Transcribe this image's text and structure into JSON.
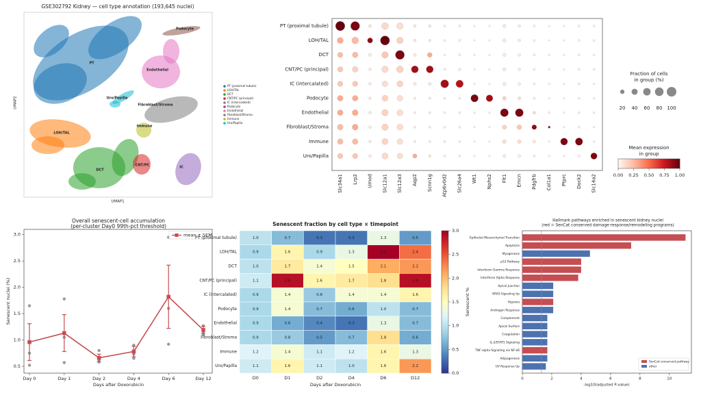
{
  "chart_data": [
    {
      "type": "umap",
      "title": "GSE302792 Kidney — cell type annotation (193,645 nuclei)",
      "xlabel": "UMAP1",
      "ylabel": "UMAP2",
      "clusters": [
        {
          "name": "PT (proximal tubule)",
          "label": "PT",
          "color": "#1f77b4"
        },
        {
          "name": "LOH/TAL",
          "label": "LOH/TAL",
          "color": "#ff7f0e"
        },
        {
          "name": "DCT",
          "label": "DCT",
          "color": "#2ca02c"
        },
        {
          "name": "CNT/PC (principal)",
          "label": "CNT/PC",
          "color": "#d62728"
        },
        {
          "name": "IC (intercalated)",
          "label": "IC",
          "color": "#9467bd"
        },
        {
          "name": "Podocyte",
          "label": "Podocyte",
          "color": "#8c564b"
        },
        {
          "name": "Endothelial",
          "label": "Endothelial",
          "color": "#e377c2"
        },
        {
          "name": "Fibroblast/Stroma",
          "label": "Fibroblast/Stroma",
          "color": "#7f7f7f"
        },
        {
          "name": "Immune",
          "label": "Immune",
          "color": "#bcbd22"
        },
        {
          "name": "Uro/Papilla",
          "label": "Uro/Papilla",
          "color": "#17becf"
        }
      ]
    },
    {
      "type": "dotplot",
      "colormap": "Reds",
      "rows": [
        "PT (proximal tubule)",
        "LOH/TAL",
        "DCT",
        "CNT/PC (principal)",
        "IC (intercalated)",
        "Podocyte",
        "Endothelial",
        "Fibroblast/Stroma",
        "Immune",
        "Uro/Papilla"
      ],
      "columns": [
        "Slc34a1",
        "Lrp2",
        "Umod",
        "Slc12a1",
        "Slc12a3",
        "Aqp2",
        "Scnn1g",
        "Atp6v0d2",
        "Slc26a4",
        "Wt1",
        "Nphs2",
        "Flt1",
        "Emcn",
        "Pdgfrb",
        "Col1a1",
        "Ptprc",
        "Dock2",
        "Slc14a2"
      ],
      "fraction": [
        [
          95,
          88,
          10,
          50,
          45,
          8,
          8,
          5,
          6,
          3,
          3,
          12,
          8,
          5,
          3,
          3,
          5,
          4
        ],
        [
          40,
          50,
          30,
          92,
          45,
          8,
          6,
          4,
          6,
          3,
          3,
          12,
          8,
          5,
          3,
          3,
          5,
          4
        ],
        [
          30,
          35,
          10,
          45,
          88,
          10,
          25,
          4,
          6,
          3,
          3,
          12,
          8,
          5,
          3,
          3,
          5,
          4
        ],
        [
          30,
          35,
          8,
          45,
          50,
          55,
          55,
          6,
          8,
          3,
          3,
          12,
          8,
          5,
          3,
          3,
          5,
          4
        ],
        [
          30,
          30,
          8,
          35,
          40,
          10,
          10,
          70,
          60,
          3,
          3,
          12,
          8,
          5,
          3,
          3,
          5,
          4
        ],
        [
          35,
          35,
          8,
          40,
          35,
          5,
          5,
          5,
          5,
          60,
          50,
          15,
          10,
          5,
          3,
          3,
          5,
          4
        ],
        [
          35,
          38,
          8,
          45,
          40,
          5,
          5,
          5,
          5,
          3,
          3,
          70,
          70,
          10,
          5,
          3,
          5,
          4
        ],
        [
          35,
          38,
          8,
          45,
          40,
          5,
          5,
          5,
          5,
          3,
          3,
          20,
          25,
          25,
          5,
          3,
          5,
          4
        ],
        [
          35,
          35,
          8,
          40,
          35,
          5,
          5,
          5,
          5,
          3,
          3,
          15,
          15,
          10,
          3,
          55,
          60,
          4
        ],
        [
          30,
          30,
          8,
          40,
          35,
          20,
          8,
          5,
          5,
          3,
          3,
          10,
          10,
          5,
          3,
          3,
          5,
          45
        ]
      ],
      "expression": [
        [
          1.0,
          0.95,
          0.05,
          0.12,
          0.1,
          0.05,
          0.05,
          0.03,
          0.03,
          0.02,
          0.02,
          0.05,
          0.03,
          0.02,
          0.01,
          0.01,
          0.02,
          0.02
        ],
        [
          0.3,
          0.25,
          0.9,
          1.0,
          0.15,
          0.05,
          0.05,
          0.03,
          0.03,
          0.02,
          0.02,
          0.05,
          0.03,
          0.02,
          0.01,
          0.01,
          0.02,
          0.02
        ],
        [
          0.25,
          0.25,
          0.05,
          0.2,
          0.95,
          0.05,
          0.3,
          0.03,
          0.03,
          0.02,
          0.02,
          0.05,
          0.03,
          0.02,
          0.01,
          0.01,
          0.02,
          0.02
        ],
        [
          0.2,
          0.15,
          0.05,
          0.12,
          0.15,
          0.85,
          0.85,
          0.03,
          0.03,
          0.02,
          0.02,
          0.05,
          0.03,
          0.02,
          0.01,
          0.01,
          0.02,
          0.02
        ],
        [
          0.2,
          0.2,
          0.05,
          0.1,
          0.15,
          0.05,
          0.05,
          0.85,
          0.8,
          0.02,
          0.02,
          0.05,
          0.03,
          0.02,
          0.01,
          0.01,
          0.02,
          0.02
        ],
        [
          0.3,
          0.3,
          0.05,
          0.15,
          0.1,
          0.05,
          0.05,
          0.03,
          0.03,
          0.95,
          0.85,
          0.15,
          0.1,
          0.02,
          0.01,
          0.01,
          0.02,
          0.02
        ],
        [
          0.3,
          0.3,
          0.05,
          0.15,
          0.1,
          0.05,
          0.05,
          0.03,
          0.03,
          0.02,
          0.02,
          0.95,
          0.95,
          0.1,
          0.03,
          0.01,
          0.02,
          0.02
        ],
        [
          0.25,
          0.3,
          0.05,
          0.15,
          0.1,
          0.05,
          0.05,
          0.03,
          0.03,
          0.02,
          0.02,
          0.15,
          0.2,
          0.9,
          0.9,
          0.01,
          0.02,
          0.02
        ],
        [
          0.25,
          0.25,
          0.05,
          0.15,
          0.1,
          0.05,
          0.05,
          0.03,
          0.03,
          0.02,
          0.02,
          0.1,
          0.1,
          0.05,
          0.01,
          0.95,
          0.95,
          0.03
        ],
        [
          0.2,
          0.2,
          0.05,
          0.12,
          0.1,
          0.3,
          0.05,
          0.03,
          0.03,
          0.02,
          0.02,
          0.05,
          0.03,
          0.02,
          0.01,
          0.01,
          0.02,
          0.95
        ]
      ],
      "size_legend": {
        "title": [
          "Fraction of cells",
          "in group (%)"
        ],
        "values": [
          20,
          40,
          60,
          80,
          100
        ]
      },
      "color_legend": {
        "title": [
          "Mean expression",
          "in group"
        ],
        "lim": [
          0,
          1
        ],
        "ticks": [
          {
            "value": 0,
            "label": "0.00"
          },
          {
            "value": 0.25,
            "label": "0.25"
          },
          {
            "value": 0.5,
            "label": "0.50"
          },
          {
            "value": 0.75,
            "label": "0.75"
          },
          {
            "value": 1,
            "label": "1.00"
          }
        ]
      }
    },
    {
      "type": "line",
      "title": [
        "Overall senescent-cell accumulation",
        "(per-cluster Day0 99th-pct threshold)"
      ],
      "categories": [
        "Day 0",
        "Day 1",
        "Day 2",
        "Day 4",
        "Day 6",
        "Day 12"
      ],
      "series": [
        {
          "name": "mean ± SEM",
          "color": "#c44e52",
          "values": [
            0.96,
            1.13,
            0.66,
            0.78,
            1.82,
            1.19
          ],
          "errors": [
            0.35,
            0.35,
            0.07,
            0.1,
            0.6,
            0.07
          ]
        }
      ],
      "replicates": [
        [
          1.65,
          0.75,
          0.52
        ],
        [
          1.78,
          1.05,
          0.57
        ],
        [
          0.8,
          0.62,
          0.58
        ],
        [
          0.9,
          0.73,
          0.65
        ],
        [
          2.95,
          1.6,
          0.92
        ],
        [
          1.27,
          1.15,
          1.1
        ]
      ],
      "replicate_color": "#999999",
      "ylim": [
        0.37,
        3.1
      ],
      "yticks": [
        0.5,
        {
          "value": 1,
          "label": "1.0"
        },
        1.5,
        {
          "value": 2,
          "label": "2.0"
        },
        2.5,
        {
          "value": 3,
          "label": "3.0"
        }
      ],
      "xlabel": "Days after Doxorubicin",
      "ylabel": "Senescent nuclei (%)",
      "legend": "upper right",
      "grid": false
    },
    {
      "type": "heatmap",
      "title": "Senescent fraction by cell type × timepoint",
      "colormap": "RdYlBu_r",
      "rows": [
        "PT (proximal tubule)",
        "LOH/TAL",
        "DCT",
        "CNT/PC (principal)",
        "IC (intercalated)",
        "Podocyte",
        "Endothelial",
        "Fibroblast/Stroma",
        "Immune",
        "Uro/Papilla"
      ],
      "columns": [
        "D0",
        "D1",
        "D2",
        "D4",
        "D6",
        "D12"
      ],
      "values": [
        [
          1.0,
          0.7,
          0.3,
          0.3,
          1.3,
          0.5
        ],
        [
          0.9,
          1.6,
          0.9,
          1.3,
          3.1,
          2.4
        ],
        [
          1.0,
          1.7,
          1.4,
          1.5,
          2.1,
          2.2
        ],
        [
          1.1,
          2.9,
          1.6,
          1.7,
          1.8,
          2.9
        ],
        [
          0.9,
          1.4,
          0.8,
          1.4,
          1.4,
          1.6
        ],
        [
          0.9,
          1.4,
          0.7,
          0.6,
          1.0,
          0.7
        ],
        [
          0.9,
          0.6,
          0.4,
          0.3,
          1.3,
          0.7
        ],
        [
          0.9,
          0.8,
          0.5,
          0.7,
          1.8,
          0.6
        ],
        [
          1.2,
          1.4,
          1.1,
          1.2,
          1.6,
          1.3
        ],
        [
          1.1,
          1.6,
          1.1,
          1.0,
          1.6,
          2.2
        ]
      ],
      "value_labels": [
        [
          "1.0",
          "0.7",
          "0.3",
          "0.3",
          "1.3",
          "0.5"
        ],
        [
          "0.9",
          "1.6",
          "0.9",
          "1.3",
          "3.1",
          "2.4"
        ],
        [
          "1.0",
          "1.7",
          "1.4",
          "1.5",
          "2.1",
          "2.2"
        ],
        [
          "1.1",
          "2.9",
          "1.6",
          "1.7",
          "1.8",
          "2.9"
        ],
        [
          "0.9",
          "1.4",
          "0.8",
          "1.4",
          "1.4",
          "1.6"
        ],
        [
          "0.9",
          "1.4",
          "0.7",
          "0.6",
          "1.0",
          "0.7"
        ],
        [
          "0.9",
          "0.6",
          "0.4",
          "0.3",
          "1.3",
          "0.7"
        ],
        [
          "0.9",
          "0.8",
          "0.5",
          "0.7",
          "1.8",
          "0.6"
        ],
        [
          "1.2",
          "1.4",
          "1.1",
          "1.2",
          "1.6",
          "1.3"
        ],
        [
          "1.1",
          "1.6",
          "1.1",
          "1.0",
          "1.6",
          "2.2"
        ]
      ],
      "colorbar_lim": [
        0,
        3
      ],
      "colorbar_ticks": [
        {
          "value": 0,
          "label": "0.0"
        },
        0.5,
        {
          "value": 1,
          "label": "1.0"
        },
        1.5,
        {
          "value": 2,
          "label": "2.0"
        },
        2.5,
        {
          "value": 3,
          "label": "3.0"
        }
      ],
      "colorbar_label": "Senescent %",
      "xlabel": "Days after Doxorubicin"
    },
    {
      "type": "barh",
      "title": [
        "Hallmark pathways enriched in senescent kidney nuclei",
        "(red = SenCat conserved damage-response/remodeling programs)"
      ],
      "categories": [
        "Epithelial Mesenchymal Transition",
        "Apoptosis",
        "Myogenesis",
        "p53 Pathway",
        "Interferon Gamma Response",
        "Interferon Alpha Response",
        "Apical Junction",
        "KRAS Signaling Up",
        "Hypoxia",
        "Androgen Response",
        "Complement",
        "Apical Surface",
        "Coagulation",
        "IL-2/STAT5 Signaling",
        "TNF-alpha Signaling via NF-kB",
        "Adipogenesis",
        "UV Response Up"
      ],
      "values": [
        11.1,
        7.4,
        4.6,
        4.0,
        4.0,
        3.8,
        2.1,
        2.1,
        2.1,
        2.1,
        1.7,
        1.7,
        1.7,
        1.7,
        1.7,
        1.7,
        1.6
      ],
      "colors": [
        "#c44e52",
        "#c44e52",
        "#4c72b0",
        "#c44e52",
        "#c44e52",
        "#c44e52",
        "#4c72b0",
        "#4c72b0",
        "#c44e52",
        "#4c72b0",
        "#4c72b0",
        "#4c72b0",
        "#4c72b0",
        "#4c72b0",
        "#c44e52",
        "#4c72b0",
        "#4c72b0"
      ],
      "legend_entries": [
        {
          "name": "SenCat conserved pathway",
          "color": "#c44e52"
        },
        {
          "name": "other",
          "color": "#4c72b0"
        }
      ],
      "legend": "lower right",
      "reference_line": 1.3,
      "xlim": [
        0,
        11.5
      ],
      "xticks": [
        0,
        2,
        4,
        6,
        8,
        10
      ],
      "xlabel": "-log10(adjusted P-value)"
    }
  ]
}
